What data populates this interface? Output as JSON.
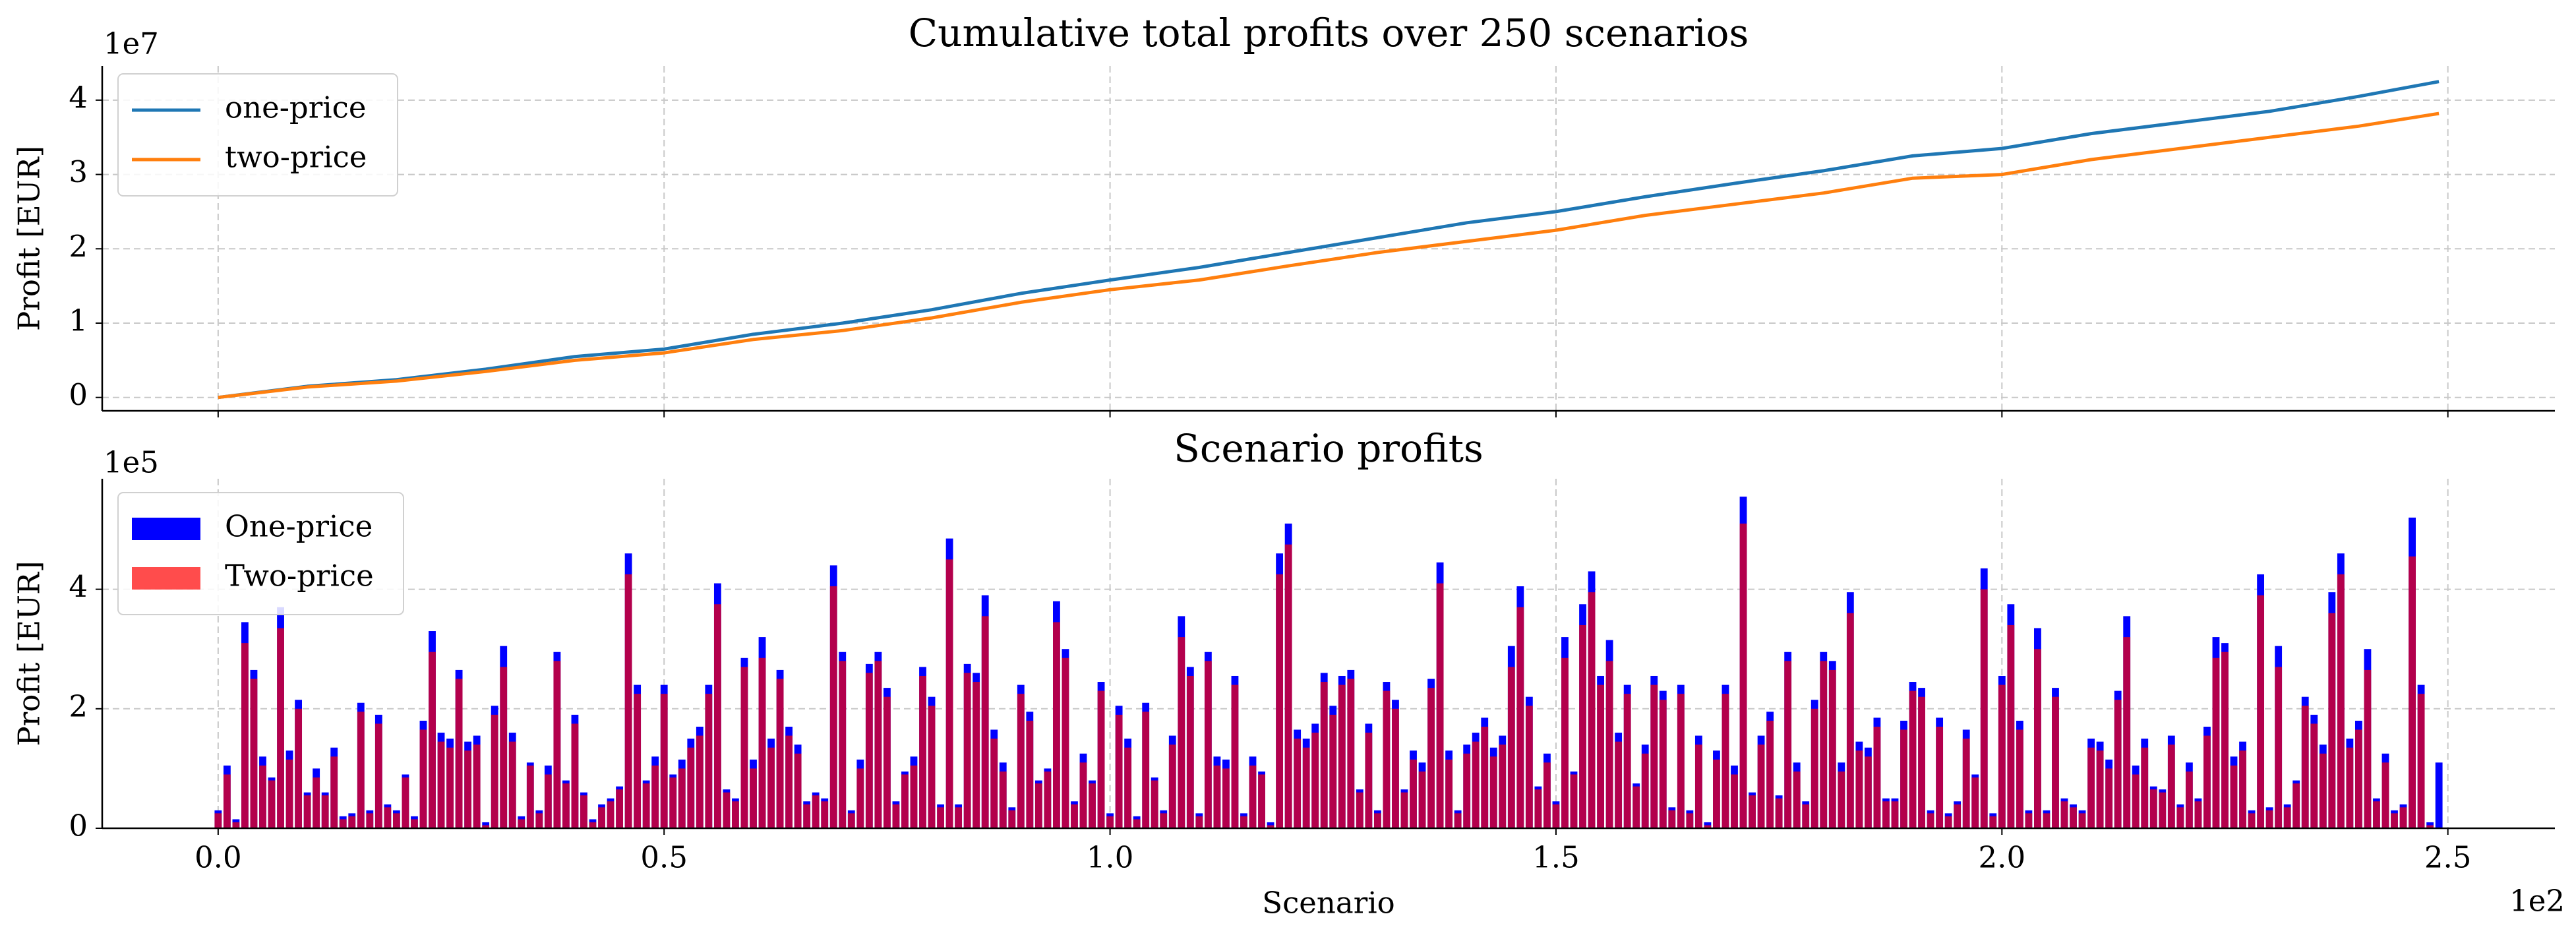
{
  "chart_data": [
    {
      "type": "line",
      "title": "Cumulative total profits over 250 scenarios",
      "ylabel": "Profit [EUR]",
      "y_offset": "1e7",
      "x": [
        0,
        0.1,
        0.2,
        0.3,
        0.4,
        0.5,
        0.6,
        0.7,
        0.8,
        0.9,
        1,
        1.1,
        1.2,
        1.3,
        1.4,
        1.5,
        1.6,
        1.7,
        1.8,
        1.9,
        2,
        2.1,
        2.2,
        2.3,
        2.4,
        2.49
      ],
      "series": [
        {
          "name": "one-price",
          "color": "#1f77b4",
          "values": [
            0,
            0.15,
            0.24,
            0.38,
            0.55,
            0.65,
            0.85,
            1.0,
            1.18,
            1.4,
            1.58,
            1.75,
            1.95,
            2.15,
            2.35,
            2.5,
            2.7,
            2.88,
            3.05,
            3.25,
            3.35,
            3.55,
            3.7,
            3.85,
            4.05,
            4.25
          ]
        },
        {
          "name": "two-price",
          "color": "#ff7f0e",
          "values": [
            0,
            0.14,
            0.22,
            0.35,
            0.5,
            0.6,
            0.78,
            0.9,
            1.07,
            1.28,
            1.45,
            1.58,
            1.77,
            1.95,
            2.1,
            2.25,
            2.45,
            2.6,
            2.75,
            2.95,
            3.0,
            3.2,
            3.35,
            3.5,
            3.65,
            3.82
          ]
        }
      ],
      "xlim": [
        -0.13,
        2.62
      ],
      "ylim": [
        -0.18,
        4.46
      ],
      "xticks": [
        0,
        0.5,
        1,
        1.5,
        2,
        2.5
      ],
      "yticks": [
        0,
        1,
        2,
        3,
        4
      ],
      "grid": true,
      "legend": "upper-left"
    },
    {
      "type": "bar",
      "title": "Scenario profits",
      "ylabel": "Profit [EUR]",
      "xlabel": "Scenario",
      "y_offset": "1e5",
      "x_offset": "1e2",
      "x": [
        0,
        0.01,
        0.02,
        0.03,
        0.04,
        0.05,
        0.06,
        0.07,
        0.08,
        0.09,
        0.1,
        0.11,
        0.12,
        0.13,
        0.14,
        0.15,
        0.16,
        0.17,
        0.18,
        0.19,
        0.2,
        0.21,
        0.22,
        0.23,
        0.24,
        0.25,
        0.26,
        0.27,
        0.28,
        0.29,
        0.3,
        0.31,
        0.32,
        0.33,
        0.34,
        0.35,
        0.36,
        0.37,
        0.38,
        0.39,
        0.4,
        0.41,
        0.42,
        0.43,
        0.44,
        0.45,
        0.46,
        0.47,
        0.48,
        0.49,
        0.5,
        0.51,
        0.52,
        0.53,
        0.54,
        0.55,
        0.56,
        0.57,
        0.58,
        0.59,
        0.6,
        0.61,
        0.62,
        0.63,
        0.64,
        0.65,
        0.66,
        0.67,
        0.68,
        0.69,
        0.7,
        0.71,
        0.72,
        0.73,
        0.74,
        0.75,
        0.76,
        0.77,
        0.78,
        0.79,
        0.8,
        0.81,
        0.82,
        0.83,
        0.84,
        0.85,
        0.86,
        0.87,
        0.88,
        0.89,
        0.9,
        0.91,
        0.92,
        0.93,
        0.94,
        0.95,
        0.96,
        0.97,
        0.98,
        0.99,
        1,
        1.01,
        1.02,
        1.03,
        1.04,
        1.05,
        1.06,
        1.07,
        1.08,
        1.09,
        1.1,
        1.11,
        1.12,
        1.13,
        1.14,
        1.15,
        1.16,
        1.17,
        1.18,
        1.19,
        1.2,
        1.21,
        1.22,
        1.23,
        1.24,
        1.25,
        1.26,
        1.27,
        1.28,
        1.29,
        1.3,
        1.31,
        1.32,
        1.33,
        1.34,
        1.35,
        1.36,
        1.37,
        1.38,
        1.39,
        1.4,
        1.41,
        1.42,
        1.43,
        1.44,
        1.45,
        1.46,
        1.47,
        1.48,
        1.49,
        1.5,
        1.51,
        1.52,
        1.53,
        1.54,
        1.55,
        1.56,
        1.57,
        1.58,
        1.59,
        1.6,
        1.61,
        1.62,
        1.63,
        1.64,
        1.65,
        1.66,
        1.67,
        1.68,
        1.69,
        1.7,
        1.71,
        1.72,
        1.73,
        1.74,
        1.75,
        1.76,
        1.77,
        1.78,
        1.79,
        1.8,
        1.81,
        1.82,
        1.83,
        1.84,
        1.85,
        1.86,
        1.87,
        1.88,
        1.89,
        1.9,
        1.91,
        1.92,
        1.93,
        1.94,
        1.95,
        1.96,
        1.97,
        1.98,
        1.99,
        2,
        2.01,
        2.02,
        2.03,
        2.04,
        2.05,
        2.06,
        2.07,
        2.08,
        2.09,
        2.1,
        2.11,
        2.12,
        2.13,
        2.14,
        2.15,
        2.16,
        2.17,
        2.18,
        2.19,
        2.2,
        2.21,
        2.22,
        2.23,
        2.24,
        2.25,
        2.26,
        2.27,
        2.28,
        2.29,
        2.3,
        2.31,
        2.32,
        2.33,
        2.34,
        2.35,
        2.36,
        2.37,
        2.38,
        2.39,
        2.4,
        2.41,
        2.42,
        2.43,
        2.44,
        2.45,
        2.46,
        2.47,
        2.48,
        2.49
      ],
      "series": [
        {
          "name": "One-price",
          "color": "#0000ff",
          "opacity": 1,
          "values": [
            0.3,
            1.05,
            0.15,
            3.45,
            2.65,
            1.2,
            0.85,
            3.7,
            1.3,
            2.15,
            0.6,
            1.0,
            0.6,
            1.35,
            0.2,
            0.25,
            2.1,
            0.3,
            1.9,
            0.4,
            0.3,
            0.9,
            0.2,
            1.8,
            3.3,
            1.6,
            1.5,
            2.65,
            1.45,
            1.55,
            0.1,
            2.05,
            3.05,
            1.6,
            0.2,
            1.1,
            0.3,
            1.05,
            2.95,
            0.8,
            1.9,
            0.6,
            0.15,
            0.4,
            0.5,
            0.7,
            4.6,
            2.4,
            0.8,
            1.2,
            2.4,
            0.9,
            1.15,
            1.5,
            1.7,
            2.4,
            4.1,
            0.65,
            0.5,
            2.85,
            1.15,
            3.2,
            1.5,
            2.65,
            1.7,
            1.4,
            0.45,
            0.6,
            0.5,
            4.4,
            2.95,
            0.3,
            1.15,
            2.75,
            2.95,
            2.35,
            0.45,
            0.95,
            1.2,
            2.7,
            2.2,
            0.4,
            4.85,
            0.4,
            2.75,
            2.6,
            3.9,
            1.65,
            1.1,
            0.35,
            2.4,
            1.95,
            0.8,
            1.0,
            3.8,
            3.0,
            0.45,
            1.25,
            0.8,
            2.45,
            0.25,
            2.05,
            1.5,
            0.2,
            2.1,
            0.85,
            0.3,
            1.55,
            3.55,
            2.7,
            0.25,
            2.95,
            1.2,
            1.15,
            2.55,
            0.25,
            1.2,
            0.95,
            0.1,
            4.6,
            5.1,
            1.65,
            1.5,
            1.75,
            2.6,
            2.05,
            2.55,
            2.65,
            0.65,
            1.75,
            0.3,
            2.45,
            2.15,
            0.65,
            1.3,
            1.1,
            2.5,
            4.45,
            1.3,
            0.3,
            1.4,
            1.6,
            1.85,
            1.35,
            1.55,
            3.05,
            4.05,
            2.2,
            0.7,
            1.25,
            0.45,
            3.2,
            0.95,
            3.75,
            4.3,
            2.55,
            3.15,
            1.6,
            2.4,
            0.75,
            1.4,
            2.55,
            2.3,
            0.35,
            2.4,
            0.3,
            1.55,
            0.1,
            1.3,
            2.4,
            1.05,
            5.55,
            0.6,
            1.55,
            1.95,
            0.55,
            2.95,
            1.1,
            0.45,
            2.15,
            2.95,
            2.8,
            1.1,
            3.95,
            1.45,
            1.35,
            1.85,
            0.5,
            0.5,
            1.8,
            2.45,
            2.35,
            0.3,
            1.85,
            0.25,
            0.45,
            1.65,
            0.9,
            4.35,
            0.25,
            2.55,
            3.75,
            1.8,
            0.3,
            3.35,
            0.3,
            2.35,
            0.5,
            0.4,
            0.3,
            1.5,
            1.45,
            1.15,
            2.3,
            3.55,
            1.05,
            1.5,
            0.7,
            0.65,
            1.55,
            0.4,
            1.1,
            0.5,
            1.7,
            3.2,
            3.1,
            1.2,
            1.45,
            0.3,
            4.25,
            0.35,
            3.05,
            0.4,
            0.8,
            2.2,
            1.9,
            1.4,
            3.95,
            4.6,
            1.5,
            1.8,
            3.0,
            0.5,
            1.25,
            0.3,
            0.4,
            5.2,
            2.4,
            0.1,
            1.1
          ]
        },
        {
          "name": "Two-price",
          "color": "#ff0000",
          "opacity": 0.7,
          "values": [
            0.25,
            0.9,
            0.1,
            3.1,
            2.5,
            1.05,
            0.8,
            3.35,
            1.15,
            2.0,
            0.55,
            0.85,
            0.55,
            1.2,
            0.15,
            0.2,
            1.95,
            0.25,
            1.75,
            0.35,
            0.25,
            0.85,
            0.15,
            1.65,
            2.95,
            1.45,
            1.35,
            2.5,
            1.3,
            1.4,
            0.05,
            1.9,
            2.7,
            1.45,
            0.15,
            1.05,
            0.25,
            0.9,
            2.8,
            0.75,
            1.75,
            0.55,
            0.1,
            0.35,
            0.45,
            0.65,
            4.25,
            2.25,
            0.75,
            1.05,
            2.25,
            0.85,
            1.0,
            1.35,
            1.55,
            2.25,
            3.75,
            0.6,
            0.45,
            2.7,
            1.0,
            2.85,
            1.35,
            2.5,
            1.55,
            1.25,
            0.4,
            0.55,
            0.45,
            4.05,
            2.8,
            0.25,
            1.0,
            2.6,
            2.8,
            2.2,
            0.4,
            0.9,
            1.05,
            2.55,
            2.05,
            0.35,
            4.5,
            0.35,
            2.6,
            2.45,
            3.55,
            1.5,
            0.95,
            0.3,
            2.25,
            1.8,
            0.75,
            0.95,
            3.45,
            2.85,
            0.4,
            1.1,
            0.75,
            2.3,
            0.2,
            1.9,
            1.35,
            0.15,
            1.95,
            0.8,
            0.25,
            1.4,
            3.2,
            2.55,
            0.2,
            2.8,
            1.05,
            1.0,
            2.4,
            0.2,
            1.05,
            0.9,
            0.05,
            4.25,
            4.75,
            1.5,
            1.35,
            1.6,
            2.45,
            1.9,
            2.4,
            2.5,
            0.6,
            1.6,
            0.25,
            2.3,
            2.0,
            0.6,
            1.15,
            0.95,
            2.35,
            4.1,
            1.15,
            0.25,
            1.25,
            1.45,
            1.7,
            1.2,
            1.4,
            2.7,
            3.7,
            2.05,
            0.65,
            1.1,
            0.4,
            2.85,
            0.9,
            3.4,
            3.95,
            2.4,
            2.8,
            1.45,
            2.25,
            0.7,
            1.25,
            2.4,
            2.15,
            0.3,
            2.25,
            0.25,
            1.4,
            0.05,
            1.15,
            2.25,
            0.9,
            5.1,
            0.55,
            1.4,
            1.8,
            0.5,
            2.8,
            0.95,
            0.4,
            2.0,
            2.8,
            2.65,
            0.95,
            3.6,
            1.3,
            1.2,
            1.7,
            0.45,
            0.45,
            1.65,
            2.3,
            2.2,
            0.25,
            1.7,
            0.2,
            0.4,
            1.5,
            0.85,
            4.0,
            0.2,
            2.4,
            3.4,
            1.65,
            0.25,
            3.0,
            0.25,
            2.2,
            0.45,
            0.35,
            0.25,
            1.35,
            1.3,
            1.0,
            2.15,
            3.2,
            0.9,
            1.35,
            0.65,
            0.6,
            1.4,
            0.35,
            0.95,
            0.45,
            1.55,
            2.85,
            2.95,
            1.05,
            1.3,
            0.25,
            3.9,
            0.3,
            2.7,
            0.35,
            0.75,
            2.05,
            1.75,
            1.25,
            3.6,
            4.25,
            1.35,
            1.65,
            2.65,
            0.45,
            1.1,
            0.25,
            0.35,
            4.55,
            2.25,
            0.05,
            0
          ]
        }
      ],
      "xlim": [
        -0.13,
        2.62
      ],
      "ylim": [
        0,
        5.85
      ],
      "xticks": [
        {
          "value": 0,
          "label": "0.0"
        },
        0.5,
        {
          "value": 1,
          "label": "1.0"
        },
        1.5,
        {
          "value": 2,
          "label": "2.0"
        },
        2.5
      ],
      "yticks": [
        0,
        2,
        4
      ],
      "grid": true,
      "legend": "upper-left"
    }
  ]
}
